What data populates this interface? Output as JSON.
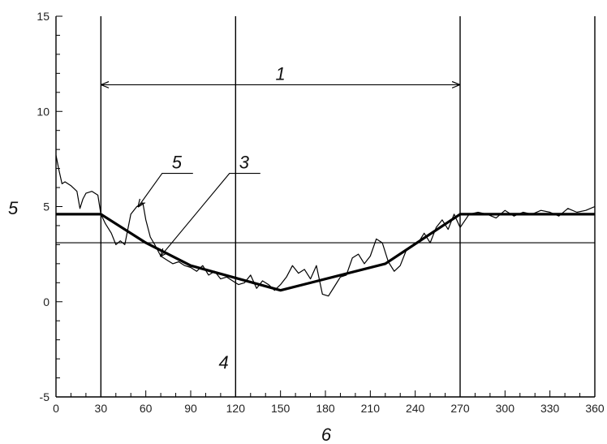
{
  "chart_data": {
    "type": "line",
    "title": "",
    "xlabel": "6",
    "ylabel": "5",
    "xlim": [
      0,
      360
    ],
    "ylim": [
      -5,
      15
    ],
    "x_ticks": [
      0,
      30,
      60,
      90,
      120,
      150,
      180,
      210,
      240,
      270,
      300,
      330,
      360
    ],
    "y_ticks": [
      -5,
      0,
      5,
      10,
      15
    ],
    "x_tick_labels": [
      "0",
      "30",
      "60",
      "90",
      "120",
      "150",
      "180",
      "210",
      "240",
      "270",
      "300",
      "330",
      "360"
    ],
    "y_tick_labels": [
      "-5",
      "0",
      "5",
      "10",
      "15"
    ],
    "vertical_lines": [
      30,
      120,
      270
    ],
    "horizontal_lines": [
      3.1
    ],
    "grid": false,
    "series": [
      {
        "style": "thick",
        "x": [
          0,
          30,
          60,
          90,
          150,
          220,
          270,
          360
        ],
        "y": [
          4.6,
          4.6,
          3.1,
          1.9,
          0.6,
          2.0,
          4.6,
          4.6
        ]
      },
      {
        "style": "thin",
        "x": [
          0,
          2,
          4,
          6,
          10,
          14,
          16,
          18,
          20,
          24,
          28,
          30,
          33,
          37,
          40,
          43,
          46,
          50,
          54,
          58,
          60,
          63,
          66,
          70,
          74,
          78,
          82,
          86,
          90,
          94,
          98,
          102,
          106,
          110,
          114,
          118,
          122,
          126,
          130,
          134,
          138,
          142,
          146,
          150,
          154,
          158,
          162,
          166,
          170,
          174,
          178,
          182,
          186,
          190,
          194,
          198,
          202,
          206,
          210,
          214,
          218,
          222,
          226,
          230,
          234,
          238,
          242,
          246,
          250,
          254,
          258,
          262,
          266,
          270,
          276,
          282,
          288,
          294,
          300,
          306,
          312,
          318,
          324,
          330,
          336,
          342,
          348,
          354,
          360
        ],
        "y": [
          7.7,
          6.9,
          6.2,
          6.3,
          6.1,
          5.8,
          4.9,
          5.4,
          5.7,
          5.8,
          5.6,
          4.6,
          4.1,
          3.6,
          3.0,
          3.2,
          3.0,
          4.6,
          5.0,
          5.2,
          4.3,
          3.4,
          3.0,
          2.4,
          2.2,
          2.0,
          2.1,
          1.9,
          1.8,
          1.6,
          1.9,
          1.4,
          1.6,
          1.2,
          1.3,
          1.1,
          0.9,
          1.0,
          1.4,
          0.7,
          1.1,
          0.9,
          0.6,
          0.9,
          1.3,
          1.9,
          1.5,
          1.7,
          1.2,
          1.9,
          0.4,
          0.3,
          0.8,
          1.3,
          1.4,
          2.3,
          2.5,
          2.0,
          2.4,
          3.3,
          3.1,
          2.1,
          1.6,
          1.9,
          2.7,
          2.9,
          3.1,
          3.6,
          3.1,
          3.9,
          4.3,
          3.8,
          4.6,
          3.9,
          4.6,
          4.7,
          4.6,
          4.4,
          4.8,
          4.5,
          4.7,
          4.6,
          4.8,
          4.7,
          4.5,
          4.9,
          4.7,
          4.8,
          5.0
        ]
      }
    ],
    "annotations": [
      {
        "label": "1",
        "type": "span-arrow",
        "x_from": 30,
        "x_to": 270,
        "y": 11.4
      },
      {
        "label": "3",
        "type": "leader",
        "text_x": 117,
        "text_y": 7.0,
        "target_x": 70,
        "target_y": 2.4
      },
      {
        "label": "5",
        "type": "leader",
        "text_x": 72,
        "text_y": 7.0,
        "target_x": 55,
        "target_y": 5.0
      },
      {
        "label": "4",
        "type": "text",
        "text_x": 112,
        "text_y": -3.5
      }
    ]
  }
}
